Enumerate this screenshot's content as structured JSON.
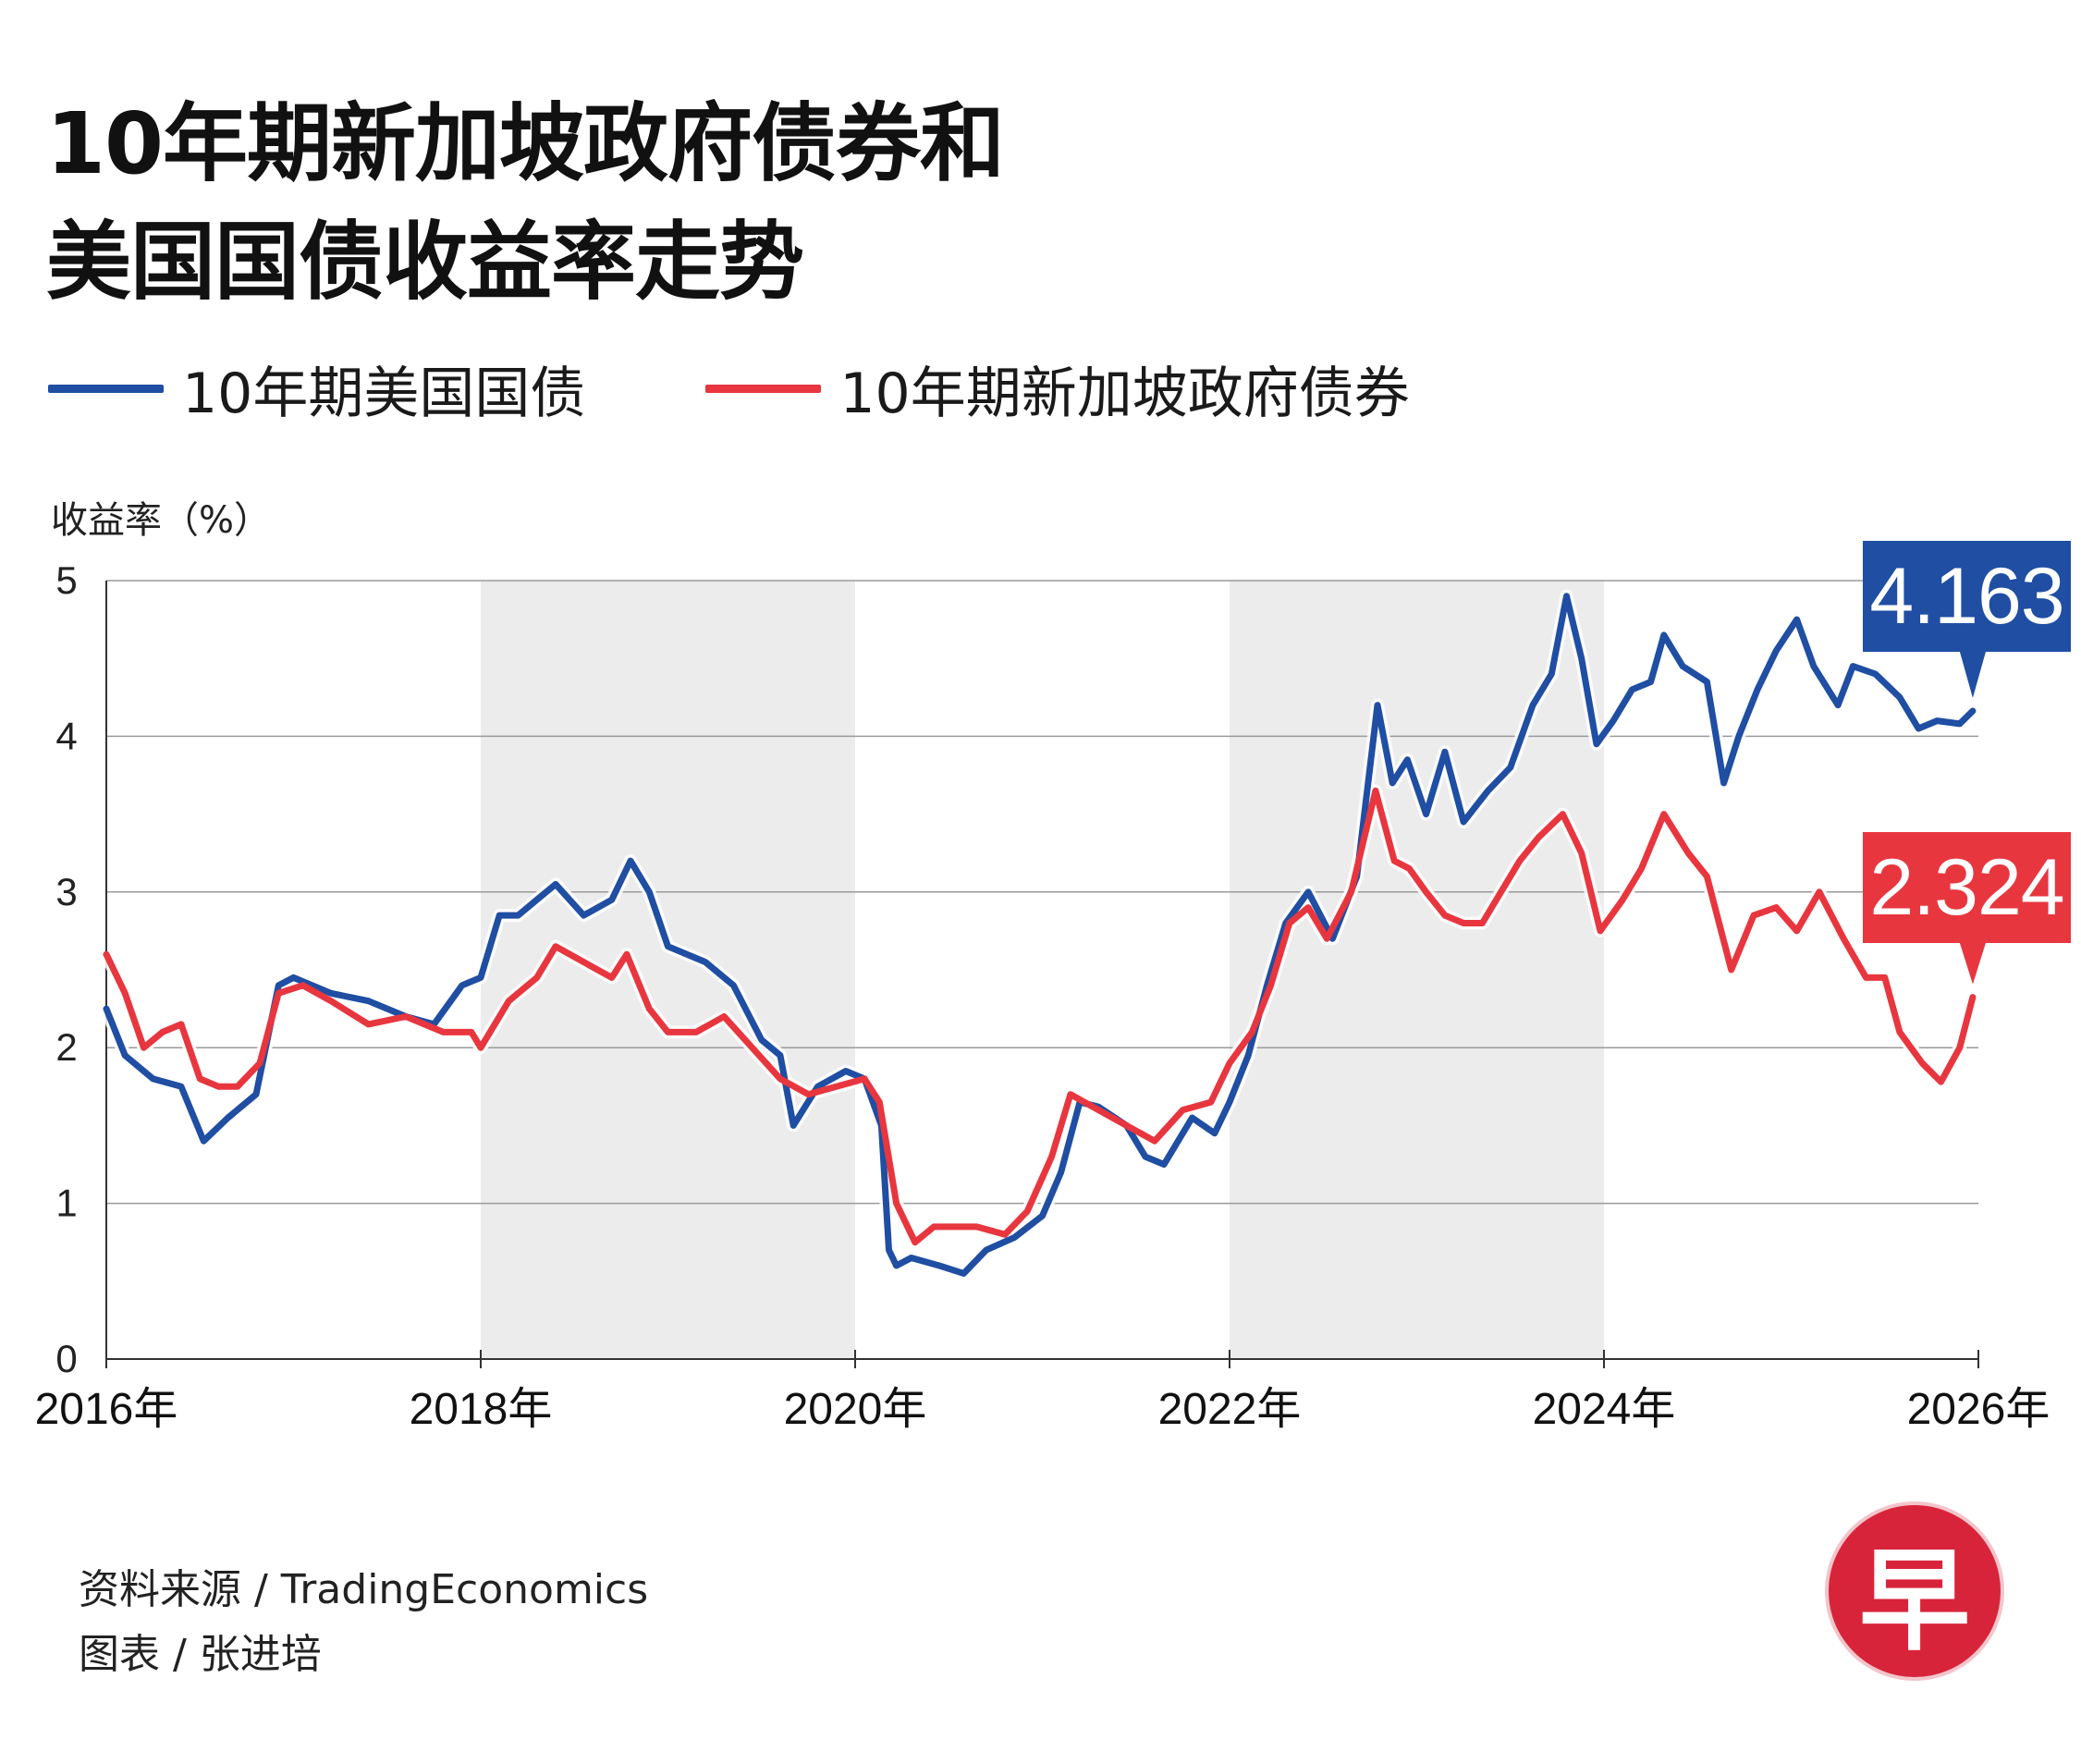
{
  "title_lines": [
    "10年期新加坡政府债券和",
    "美国国债收益率走势"
  ],
  "legend": [
    {
      "label": "10年期美国国债",
      "color": "#1f4ea3"
    },
    {
      "label": "10年期新加坡政府债券",
      "color": "#e8363f"
    }
  ],
  "footer": {
    "source": "资料来源 / TradingEconomics",
    "credit": "图表 / 张进培"
  },
  "logo": {
    "glyph": "早",
    "color": "#d8243a"
  },
  "chart_data": {
    "type": "line",
    "title": "10年期新加坡政府债券和美国国债收益率走势",
    "ylabel": "收益率（%）",
    "xlabel": "",
    "xlim": [
      2016,
      2026
    ],
    "ylim": [
      0,
      5
    ],
    "x_tick_labels": [
      "2016年",
      "2018年",
      "2020年",
      "2022年",
      "2024年",
      "2026年"
    ],
    "y_tick_labels": [
      "0",
      "1",
      "2",
      "3",
      "4",
      "5"
    ],
    "grid": true,
    "shaded_year_bands": [
      [
        2018,
        2020
      ],
      [
        2022,
        2024
      ]
    ],
    "legend_position": "top-left",
    "series": [
      {
        "name": "10年期美国国债",
        "color": "#1f4ea3",
        "last_value_label": "4.163",
        "points": [
          [
            2016.0,
            2.25
          ],
          [
            2016.1,
            1.95
          ],
          [
            2016.25,
            1.8
          ],
          [
            2016.4,
            1.75
          ],
          [
            2016.52,
            1.4
          ],
          [
            2016.65,
            1.55
          ],
          [
            2016.8,
            1.7
          ],
          [
            2016.92,
            2.4
          ],
          [
            2017.0,
            2.45
          ],
          [
            2017.2,
            2.35
          ],
          [
            2017.4,
            2.3
          ],
          [
            2017.6,
            2.2
          ],
          [
            2017.75,
            2.15
          ],
          [
            2017.9,
            2.4
          ],
          [
            2018.0,
            2.45
          ],
          [
            2018.1,
            2.85
          ],
          [
            2018.2,
            2.85
          ],
          [
            2018.3,
            2.95
          ],
          [
            2018.4,
            3.05
          ],
          [
            2018.55,
            2.85
          ],
          [
            2018.7,
            2.95
          ],
          [
            2018.8,
            3.2
          ],
          [
            2018.9,
            3.0
          ],
          [
            2019.0,
            2.65
          ],
          [
            2019.2,
            2.55
          ],
          [
            2019.35,
            2.4
          ],
          [
            2019.5,
            2.05
          ],
          [
            2019.6,
            1.95
          ],
          [
            2019.67,
            1.5
          ],
          [
            2019.8,
            1.75
          ],
          [
            2019.95,
            1.85
          ],
          [
            2020.05,
            1.8
          ],
          [
            2020.14,
            1.5
          ],
          [
            2020.18,
            0.7
          ],
          [
            2020.22,
            0.6
          ],
          [
            2020.3,
            0.65
          ],
          [
            2020.45,
            0.6
          ],
          [
            2020.58,
            0.55
          ],
          [
            2020.7,
            0.7
          ],
          [
            2020.85,
            0.78
          ],
          [
            2021.0,
            0.92
          ],
          [
            2021.1,
            1.2
          ],
          [
            2021.2,
            1.65
          ],
          [
            2021.3,
            1.62
          ],
          [
            2021.45,
            1.5
          ],
          [
            2021.55,
            1.3
          ],
          [
            2021.65,
            1.25
          ],
          [
            2021.8,
            1.55
          ],
          [
            2021.92,
            1.45
          ],
          [
            2022.0,
            1.65
          ],
          [
            2022.1,
            1.95
          ],
          [
            2022.2,
            2.4
          ],
          [
            2022.3,
            2.8
          ],
          [
            2022.42,
            3.0
          ],
          [
            2022.55,
            2.7
          ],
          [
            2022.68,
            3.1
          ],
          [
            2022.79,
            4.2
          ],
          [
            2022.87,
            3.7
          ],
          [
            2022.95,
            3.85
          ],
          [
            2023.05,
            3.5
          ],
          [
            2023.15,
            3.9
          ],
          [
            2023.25,
            3.45
          ],
          [
            2023.38,
            3.65
          ],
          [
            2023.5,
            3.8
          ],
          [
            2023.62,
            4.2
          ],
          [
            2023.72,
            4.4
          ],
          [
            2023.8,
            4.9
          ],
          [
            2023.88,
            4.5
          ],
          [
            2023.96,
            3.95
          ],
          [
            2024.05,
            4.1
          ],
          [
            2024.15,
            4.3
          ],
          [
            2024.25,
            4.35
          ],
          [
            2024.32,
            4.65
          ],
          [
            2024.42,
            4.45
          ],
          [
            2024.55,
            4.35
          ],
          [
            2024.64,
            3.7
          ],
          [
            2024.72,
            4.0
          ],
          [
            2024.82,
            4.3
          ],
          [
            2024.92,
            4.55
          ],
          [
            2025.03,
            4.75
          ],
          [
            2025.12,
            4.45
          ],
          [
            2025.25,
            4.2
          ],
          [
            2025.33,
            4.45
          ],
          [
            2025.45,
            4.4
          ],
          [
            2025.58,
            4.25
          ],
          [
            2025.68,
            4.05
          ],
          [
            2025.78,
            4.1
          ],
          [
            2025.9,
            4.08
          ],
          [
            2025.97,
            4.163
          ]
        ]
      },
      {
        "name": "10年期新加坡政府债券",
        "color": "#e8363f",
        "last_value_label": "2.324",
        "points": [
          [
            2016.0,
            2.6
          ],
          [
            2016.1,
            2.35
          ],
          [
            2016.2,
            2.0
          ],
          [
            2016.3,
            2.1
          ],
          [
            2016.4,
            2.15
          ],
          [
            2016.5,
            1.8
          ],
          [
            2016.6,
            1.75
          ],
          [
            2016.7,
            1.75
          ],
          [
            2016.82,
            1.9
          ],
          [
            2016.92,
            2.35
          ],
          [
            2017.05,
            2.4
          ],
          [
            2017.2,
            2.3
          ],
          [
            2017.4,
            2.15
          ],
          [
            2017.6,
            2.2
          ],
          [
            2017.8,
            2.1
          ],
          [
            2017.95,
            2.1
          ],
          [
            2018.0,
            2.0
          ],
          [
            2018.15,
            2.3
          ],
          [
            2018.3,
            2.45
          ],
          [
            2018.4,
            2.65
          ],
          [
            2018.55,
            2.55
          ],
          [
            2018.7,
            2.45
          ],
          [
            2018.78,
            2.6
          ],
          [
            2018.9,
            2.25
          ],
          [
            2019.0,
            2.1
          ],
          [
            2019.15,
            2.1
          ],
          [
            2019.3,
            2.2
          ],
          [
            2019.45,
            2.0
          ],
          [
            2019.6,
            1.8
          ],
          [
            2019.75,
            1.7
          ],
          [
            2019.9,
            1.75
          ],
          [
            2020.05,
            1.8
          ],
          [
            2020.13,
            1.65
          ],
          [
            2020.22,
            1.0
          ],
          [
            2020.32,
            0.75
          ],
          [
            2020.42,
            0.85
          ],
          [
            2020.52,
            0.85
          ],
          [
            2020.65,
            0.85
          ],
          [
            2020.8,
            0.8
          ],
          [
            2020.92,
            0.95
          ],
          [
            2021.05,
            1.3
          ],
          [
            2021.15,
            1.7
          ],
          [
            2021.3,
            1.6
          ],
          [
            2021.45,
            1.5
          ],
          [
            2021.6,
            1.4
          ],
          [
            2021.75,
            1.6
          ],
          [
            2021.9,
            1.65
          ],
          [
            2022.0,
            1.9
          ],
          [
            2022.12,
            2.1
          ],
          [
            2022.22,
            2.4
          ],
          [
            2022.32,
            2.8
          ],
          [
            2022.42,
            2.9
          ],
          [
            2022.52,
            2.7
          ],
          [
            2022.65,
            3.0
          ],
          [
            2022.78,
            3.65
          ],
          [
            2022.88,
            3.2
          ],
          [
            2022.96,
            3.15
          ],
          [
            2023.05,
            3.0
          ],
          [
            2023.15,
            2.85
          ],
          [
            2023.25,
            2.8
          ],
          [
            2023.35,
            2.8
          ],
          [
            2023.45,
            3.0
          ],
          [
            2023.55,
            3.2
          ],
          [
            2023.65,
            3.35
          ],
          [
            2023.78,
            3.5
          ],
          [
            2023.88,
            3.25
          ],
          [
            2023.98,
            2.75
          ],
          [
            2024.1,
            2.95
          ],
          [
            2024.2,
            3.15
          ],
          [
            2024.32,
            3.5
          ],
          [
            2024.45,
            3.25
          ],
          [
            2024.55,
            3.1
          ],
          [
            2024.68,
            2.5
          ],
          [
            2024.8,
            2.85
          ],
          [
            2024.92,
            2.9
          ],
          [
            2025.03,
            2.75
          ],
          [
            2025.15,
            3.0
          ],
          [
            2025.28,
            2.7
          ],
          [
            2025.4,
            2.45
          ],
          [
            2025.5,
            2.45
          ],
          [
            2025.58,
            2.1
          ],
          [
            2025.7,
            1.9
          ],
          [
            2025.8,
            1.78
          ],
          [
            2025.9,
            2.0
          ],
          [
            2025.97,
            2.324
          ]
        ]
      }
    ]
  }
}
